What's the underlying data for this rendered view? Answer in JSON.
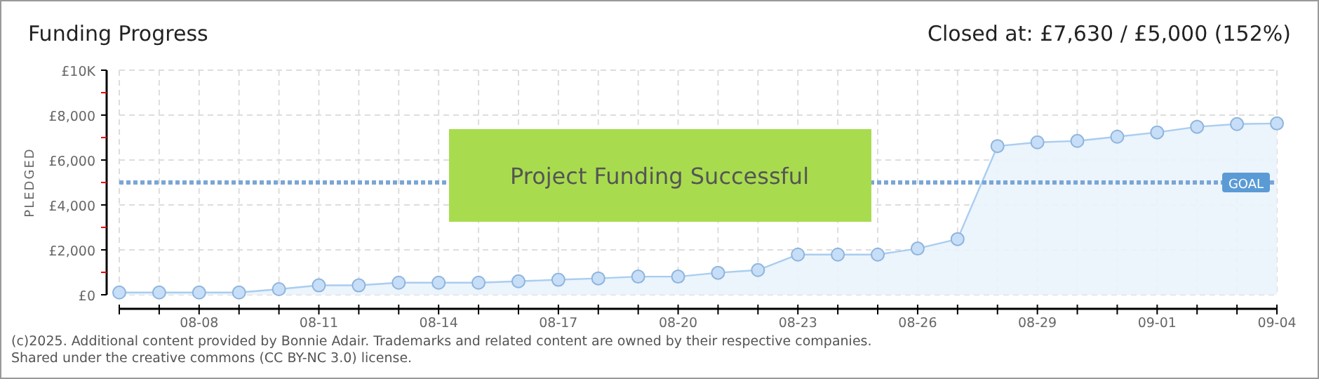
{
  "chart_data": {
    "type": "area",
    "title": "Funding Progress",
    "subtitle": "Closed at:  £7,630 / £5,000 (152%)",
    "ylabel": "PLEDGED",
    "categories": [
      null,
      null,
      "08-08",
      null,
      null,
      "08-11",
      null,
      null,
      "08-14",
      null,
      null,
      "08-17",
      null,
      null,
      "08-20",
      null,
      null,
      "08-23",
      null,
      null,
      "08-26",
      null,
      null,
      "08-29",
      null,
      null,
      "09-01",
      null,
      null,
      "09-04"
    ],
    "series": [
      {
        "color": "#a9cdf0",
        "values": [
          100,
          100,
          100,
          100,
          250,
          420,
          420,
          540,
          540,
          540,
          600,
          670,
          730,
          810,
          810,
          980,
          1100,
          1790,
          1790,
          1790,
          2060,
          2480,
          6620,
          6790,
          6850,
          7040,
          7230,
          7480,
          7600,
          7630
        ]
      }
    ],
    "ylim": [
      0,
      10000
    ],
    "yticks": [
      {
        "value": 0,
        "label": "£0"
      },
      {
        "value": 1000,
        "label": null
      },
      {
        "value": 2000,
        "label": "£2,000"
      },
      {
        "value": 3000,
        "label": null
      },
      {
        "value": 4000,
        "label": "£4,000"
      },
      {
        "value": 5000,
        "label": null
      },
      {
        "value": 6000,
        "label": "£6,000"
      },
      {
        "value": 7000,
        "label": null
      },
      {
        "value": 8000,
        "label": "£8,000"
      },
      {
        "value": 9000,
        "label": null
      },
      {
        "value": 10000,
        "label": "£10K"
      }
    ],
    "grid": true,
    "marker": "circle",
    "ref_lines": [
      {
        "axis": "y",
        "value": 5000,
        "label": "GOAL",
        "color": "#7aa6d6",
        "line_style": "dotted"
      }
    ],
    "annotations": [
      "Project Funding Successful",
      "(c)2025. Additional content provided by Bonnie Adair. Trademarks and related content are owned by their respective companies.",
      "Shared under the creative commons (CC BY-NC 3.0) license."
    ]
  }
}
